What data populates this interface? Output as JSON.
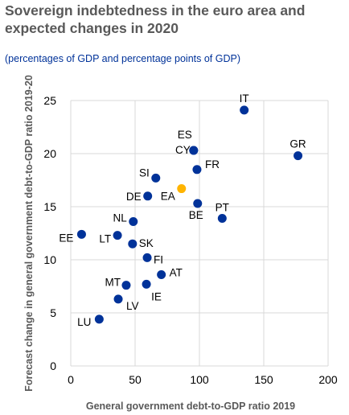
{
  "header": {
    "title": "Sovereign indebtedness in the euro area and expected changes in 2020",
    "subtitle": "(percentages of GDP and percentage points of GDP)"
  },
  "colors": {
    "country": "#003299",
    "euro_area": "#ffb400",
    "title": "#595959",
    "subtitle": "#003299",
    "grid": "#d9d9d9"
  },
  "chart_data": {
    "type": "scatter",
    "xlabel": "General government debt-to-GDP ratio 2019",
    "ylabel": "Forecast change in general government debt-to-GDP ratio 2019-20",
    "xlim": [
      0,
      200
    ],
    "ylim": [
      0,
      25
    ],
    "xticks": [
      0,
      50,
      100,
      150,
      200
    ],
    "yticks": [
      0,
      5,
      10,
      15,
      20,
      25
    ],
    "grid": true,
    "points": [
      {
        "label": "IT",
        "x": 134.8,
        "y": 24.1,
        "group": "country"
      },
      {
        "label": "GR",
        "x": 176.6,
        "y": 19.8,
        "group": "country"
      },
      {
        "label": "ES",
        "x": 95.5,
        "y": 20.3,
        "group": "country"
      },
      {
        "label": "CY",
        "x": 95.5,
        "y": 20.3,
        "group": "country"
      },
      {
        "label": "FR",
        "x": 98.1,
        "y": 18.5,
        "group": "country"
      },
      {
        "label": "SI",
        "x": 66.1,
        "y": 17.7,
        "group": "country"
      },
      {
        "label": "DE",
        "x": 59.8,
        "y": 16.0,
        "group": "country"
      },
      {
        "label": "EA",
        "x": 86.1,
        "y": 16.7,
        "group": "euro_area"
      },
      {
        "label": "BE",
        "x": 98.6,
        "y": 15.3,
        "group": "country"
      },
      {
        "label": "PT",
        "x": 117.7,
        "y": 13.9,
        "group": "country"
      },
      {
        "label": "NL",
        "x": 48.6,
        "y": 13.6,
        "group": "country"
      },
      {
        "label": "EE",
        "x": 8.4,
        "y": 12.4,
        "group": "country"
      },
      {
        "label": "LT",
        "x": 36.3,
        "y": 12.3,
        "group": "country"
      },
      {
        "label": "SK",
        "x": 48.0,
        "y": 11.5,
        "group": "country"
      },
      {
        "label": "FI",
        "x": 59.4,
        "y": 10.2,
        "group": "country"
      },
      {
        "label": "AT",
        "x": 70.4,
        "y": 8.6,
        "group": "country"
      },
      {
        "label": "MT",
        "x": 43.1,
        "y": 7.6,
        "group": "country"
      },
      {
        "label": "IE",
        "x": 58.8,
        "y": 7.7,
        "group": "country"
      },
      {
        "label": "LV",
        "x": 36.9,
        "y": 6.3,
        "group": "country"
      },
      {
        "label": "LU",
        "x": 22.1,
        "y": 4.4,
        "group": "country"
      }
    ]
  }
}
